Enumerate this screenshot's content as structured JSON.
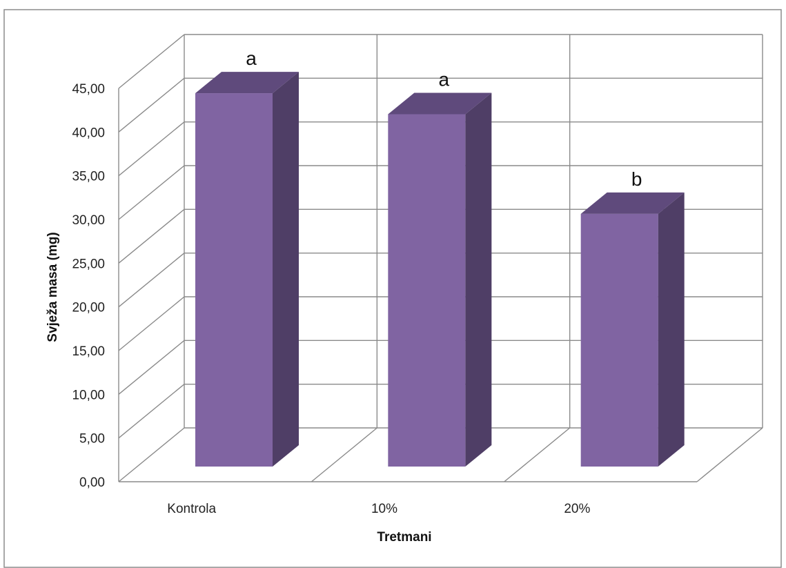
{
  "chart_data": {
    "type": "bar",
    "categories": [
      "Kontrola",
      "10%",
      "20%"
    ],
    "values": [
      44.6,
      42.2,
      30.8
    ],
    "data_labels": [
      "a",
      "a",
      "b"
    ],
    "ylabel": "Svježa masa (mg)",
    "xlabel": "Tretmani",
    "ylim": [
      0,
      45
    ],
    "yticks": [
      "0,00",
      "5,00",
      "10,00",
      "15,00",
      "20,00",
      "25,00",
      "30,00",
      "35,00",
      "40,00",
      "45,00"
    ],
    "style": "3d-column",
    "grid": true,
    "colors": {
      "front": "#8064A2",
      "side": "#4F3E66",
      "top": "#5F4A7C"
    }
  }
}
